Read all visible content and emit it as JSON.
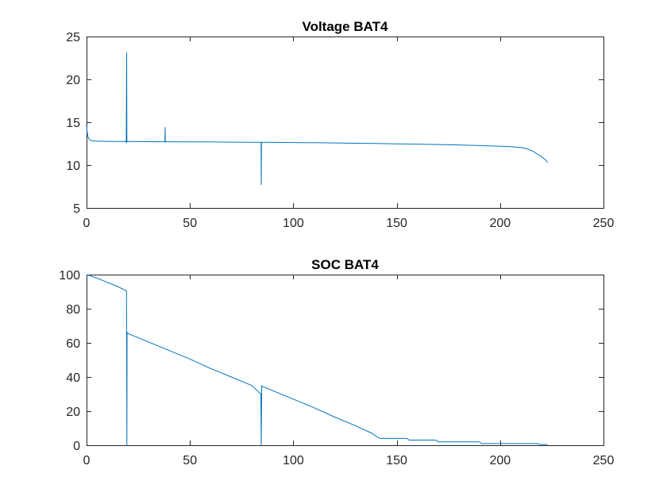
{
  "chart_data": [
    {
      "type": "line",
      "title": "Voltage BAT4",
      "xlabel": "",
      "ylabel": "",
      "xlim": [
        0,
        250
      ],
      "ylim": [
        5,
        25
      ],
      "xticks": [
        0,
        50,
        100,
        150,
        200,
        250
      ],
      "yticks": [
        5,
        10,
        15,
        20,
        25
      ],
      "grid": false,
      "color": "#0072BD",
      "series": [
        {
          "x": [
            0,
            0.3,
            0.8,
            1.5,
            2.5,
            4,
            6,
            10,
            15,
            19,
            19.2,
            19.4,
            19.5,
            19.6,
            19.8,
            20,
            25,
            30,
            37.9,
            38,
            38.1,
            38.3,
            40,
            50,
            60,
            70,
            80,
            84.4,
            84.5,
            84.6,
            85,
            90,
            100,
            110,
            120,
            130,
            140,
            150,
            160,
            170,
            180,
            190,
            200,
            205,
            210,
            213,
            216,
            218,
            220,
            222,
            223
          ],
          "y": [
            14.8,
            13.8,
            13.2,
            12.95,
            12.85,
            12.8,
            12.78,
            12.77,
            12.76,
            12.76,
            12.6,
            23.1,
            12.7,
            12.75,
            12.75,
            12.75,
            12.74,
            12.73,
            12.72,
            14.4,
            12.7,
            12.72,
            12.72,
            12.71,
            12.7,
            12.68,
            12.67,
            12.66,
            7.7,
            12.66,
            12.66,
            12.65,
            12.63,
            12.61,
            12.58,
            12.55,
            12.52,
            12.48,
            12.44,
            12.4,
            12.35,
            12.28,
            12.2,
            12.15,
            12.05,
            11.9,
            11.6,
            11.3,
            11.0,
            10.6,
            10.3
          ]
        }
      ]
    },
    {
      "type": "line",
      "title": "SOC BAT4",
      "xlabel": "",
      "ylabel": "",
      "xlim": [
        0,
        250
      ],
      "ylim": [
        0,
        100
      ],
      "xticks": [
        0,
        50,
        100,
        150,
        200,
        250
      ],
      "yticks": [
        0,
        20,
        40,
        60,
        80,
        100
      ],
      "grid": false,
      "color": "#0072BD",
      "series": [
        {
          "x": [
            0,
            5,
            10,
            15,
            19.3,
            19.5,
            19.6,
            19.8,
            20,
            30,
            40,
            50,
            60,
            70,
            80,
            84.3,
            84.5,
            84.7,
            85,
            90,
            100,
            110,
            120,
            130,
            138,
            141,
            142,
            155,
            156,
            169,
            170,
            190,
            191,
            218,
            219,
            223
          ],
          "y": [
            100,
            98,
            95.5,
            93,
            90.5,
            0,
            66,
            66,
            65.5,
            60.5,
            55.5,
            50.5,
            45,
            40,
            35,
            30,
            0,
            35,
            34.5,
            32,
            27,
            22,
            16.5,
            11.5,
            7,
            4.5,
            4,
            4,
            3,
            3,
            2,
            2,
            1,
            1,
            0.5,
            0.4
          ]
        }
      ]
    }
  ]
}
